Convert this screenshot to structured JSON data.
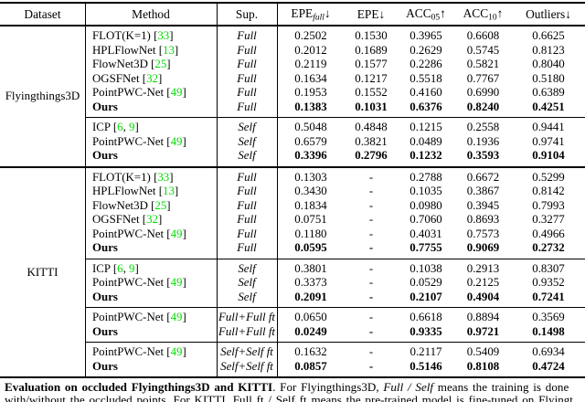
{
  "colors": {
    "citation_green": "#00dd00",
    "rule_black": "#000000"
  },
  "header": {
    "cols": [
      {
        "label": "Dataset"
      },
      {
        "label": "Method"
      },
      {
        "label": "Sup."
      },
      {
        "base": "EPE",
        "sub": "full",
        "sub_italic": true,
        "arrow": "↓"
      },
      {
        "base": "EPE",
        "sub": "",
        "sub_italic": false,
        "arrow": "↓"
      },
      {
        "base": "ACC",
        "sub": "05",
        "sub_italic": false,
        "arrow": "↑"
      },
      {
        "base": "ACC",
        "sub": "10",
        "sub_italic": false,
        "arrow": "↑"
      },
      {
        "base": "Outliers",
        "sub": "",
        "sub_italic": false,
        "arrow": "↓"
      }
    ]
  },
  "datasets": [
    {
      "name": "Flyingthings3D",
      "groups": [
        {
          "rows": [
            {
              "method": "FLOT(K=1)",
              "cites": [
                "33"
              ],
              "sup": "Full",
              "values": [
                "0.2502",
                "0.1530",
                "0.3965",
                "0.6608",
                "0.6625"
              ],
              "bold": false
            },
            {
              "method": "HPLFlowNet",
              "cites": [
                "13"
              ],
              "sup": "Full",
              "values": [
                "0.2012",
                "0.1689",
                "0.2629",
                "0.5745",
                "0.8123"
              ],
              "bold": false
            },
            {
              "method": "FlowNet3D",
              "cites": [
                "25"
              ],
              "sup": "Full",
              "values": [
                "0.2119",
                "0.1577",
                "0.2286",
                "0.5821",
                "0.8040"
              ],
              "bold": false
            },
            {
              "method": "OGSFNet",
              "cites": [
                "32"
              ],
              "sup": "Full",
              "values": [
                "0.1634",
                "0.1217",
                "0.5518",
                "0.7767",
                "0.5180"
              ],
              "bold": false
            },
            {
              "method": "PointPWC-Net",
              "cites": [
                "49"
              ],
              "sup": "Full",
              "values": [
                "0.1953",
                "0.1552",
                "0.4160",
                "0.6990",
                "0.6389"
              ],
              "bold": false
            },
            {
              "method": "Ours",
              "cites": [],
              "sup": "Full",
              "values": [
                "0.1383",
                "0.1031",
                "0.6376",
                "0.8240",
                "0.4251"
              ],
              "bold": true
            }
          ]
        },
        {
          "rows": [
            {
              "method": "ICP",
              "cites": [
                "6",
                "9"
              ],
              "sup": "Self",
              "values": [
                "0.5048",
                "0.4848",
                "0.1215",
                "0.2558",
                "0.9441"
              ],
              "bold": false
            },
            {
              "method": "PointPWC-Net",
              "cites": [
                "49"
              ],
              "sup": "Self",
              "values": [
                "0.6579",
                "0.3821",
                "0.0489",
                "0.1936",
                "0.9741"
              ],
              "bold": false
            },
            {
              "method": "Ours",
              "cites": [],
              "sup": "Self",
              "values": [
                "0.3396",
                "0.2796",
                "0.1232",
                "0.3593",
                "0.9104"
              ],
              "bold": true
            }
          ]
        }
      ]
    },
    {
      "name": "KITTI",
      "groups": [
        {
          "rows": [
            {
              "method": "FLOT(K=1)",
              "cites": [
                "33"
              ],
              "sup": "Full",
              "values": [
                "0.1303",
                "-",
                "0.2788",
                "0.6672",
                "0.5299"
              ],
              "bold": false
            },
            {
              "method": "HPLFlowNet",
              "cites": [
                "13"
              ],
              "sup": "Full",
              "values": [
                "0.3430",
                "-",
                "0.1035",
                "0.3867",
                "0.8142"
              ],
              "bold": false
            },
            {
              "method": "FlowNet3D",
              "cites": [
                "25"
              ],
              "sup": "Full",
              "values": [
                "0.1834",
                "-",
                "0.0980",
                "0.3945",
                "0.7993"
              ],
              "bold": false
            },
            {
              "method": "OGSFNet",
              "cites": [
                "32"
              ],
              "sup": "Full",
              "values": [
                "0.0751",
                "-",
                "0.7060",
                "0.8693",
                "0.3277"
              ],
              "bold": false
            },
            {
              "method": "PointPWC-Net",
              "cites": [
                "49"
              ],
              "sup": "Full",
              "values": [
                "0.1180",
                "-",
                "0.4031",
                "0.7573",
                "0.4966"
              ],
              "bold": false
            },
            {
              "method": "Ours",
              "cites": [],
              "sup": "Full",
              "values": [
                "0.0595",
                "-",
                "0.7755",
                "0.9069",
                "0.2732"
              ],
              "bold": true
            }
          ]
        },
        {
          "rows": [
            {
              "method": "ICP",
              "cites": [
                "6",
                "9"
              ],
              "sup": "Self",
              "values": [
                "0.3801",
                "-",
                "0.1038",
                "0.2913",
                "0.8307"
              ],
              "bold": false
            },
            {
              "method": "PointPWC-Net",
              "cites": [
                "49"
              ],
              "sup": "Self",
              "values": [
                "0.3373",
                "-",
                "0.0529",
                "0.2125",
                "0.9352"
              ],
              "bold": false
            },
            {
              "method": "Ours",
              "cites": [],
              "sup": "Self",
              "values": [
                "0.2091",
                "-",
                "0.2107",
                "0.4904",
                "0.7241"
              ],
              "bold": true
            }
          ]
        },
        {
          "rows": [
            {
              "method": "PointPWC-Net",
              "cites": [
                "49"
              ],
              "sup": "Full+Full ft",
              "values": [
                "0.0650",
                "-",
                "0.6618",
                "0.8894",
                "0.3569"
              ],
              "bold": false
            },
            {
              "method": "Ours",
              "cites": [],
              "sup": "Full+Full ft",
              "values": [
                "0.0249",
                "-",
                "0.9335",
                "0.9721",
                "0.1498"
              ],
              "bold": true
            }
          ]
        },
        {
          "rows": [
            {
              "method": "PointPWC-Net",
              "cites": [
                "49"
              ],
              "sup": "Self+Self ft",
              "values": [
                "0.1632",
                "-",
                "0.2117",
                "0.5409",
                "0.6934"
              ],
              "bold": false
            },
            {
              "method": "Ours",
              "cites": [],
              "sup": "Self+Self ft",
              "values": [
                "0.0857",
                "-",
                "0.5146",
                "0.8108",
                "0.4724"
              ],
              "bold": true
            }
          ]
        }
      ]
    }
  ],
  "caption": {
    "bold": "Evaluation on occluded Flyingthings3D and KITTI",
    "rest1": ". For Flyingthings3D, ",
    "italic1": "Full / Self",
    "rest2": " means the training is done",
    "line2_clipped": "with/without the occluded points. For KITTI, Full ft / Self ft means the pre-trained model is fine-tuned on Flyingt"
  }
}
